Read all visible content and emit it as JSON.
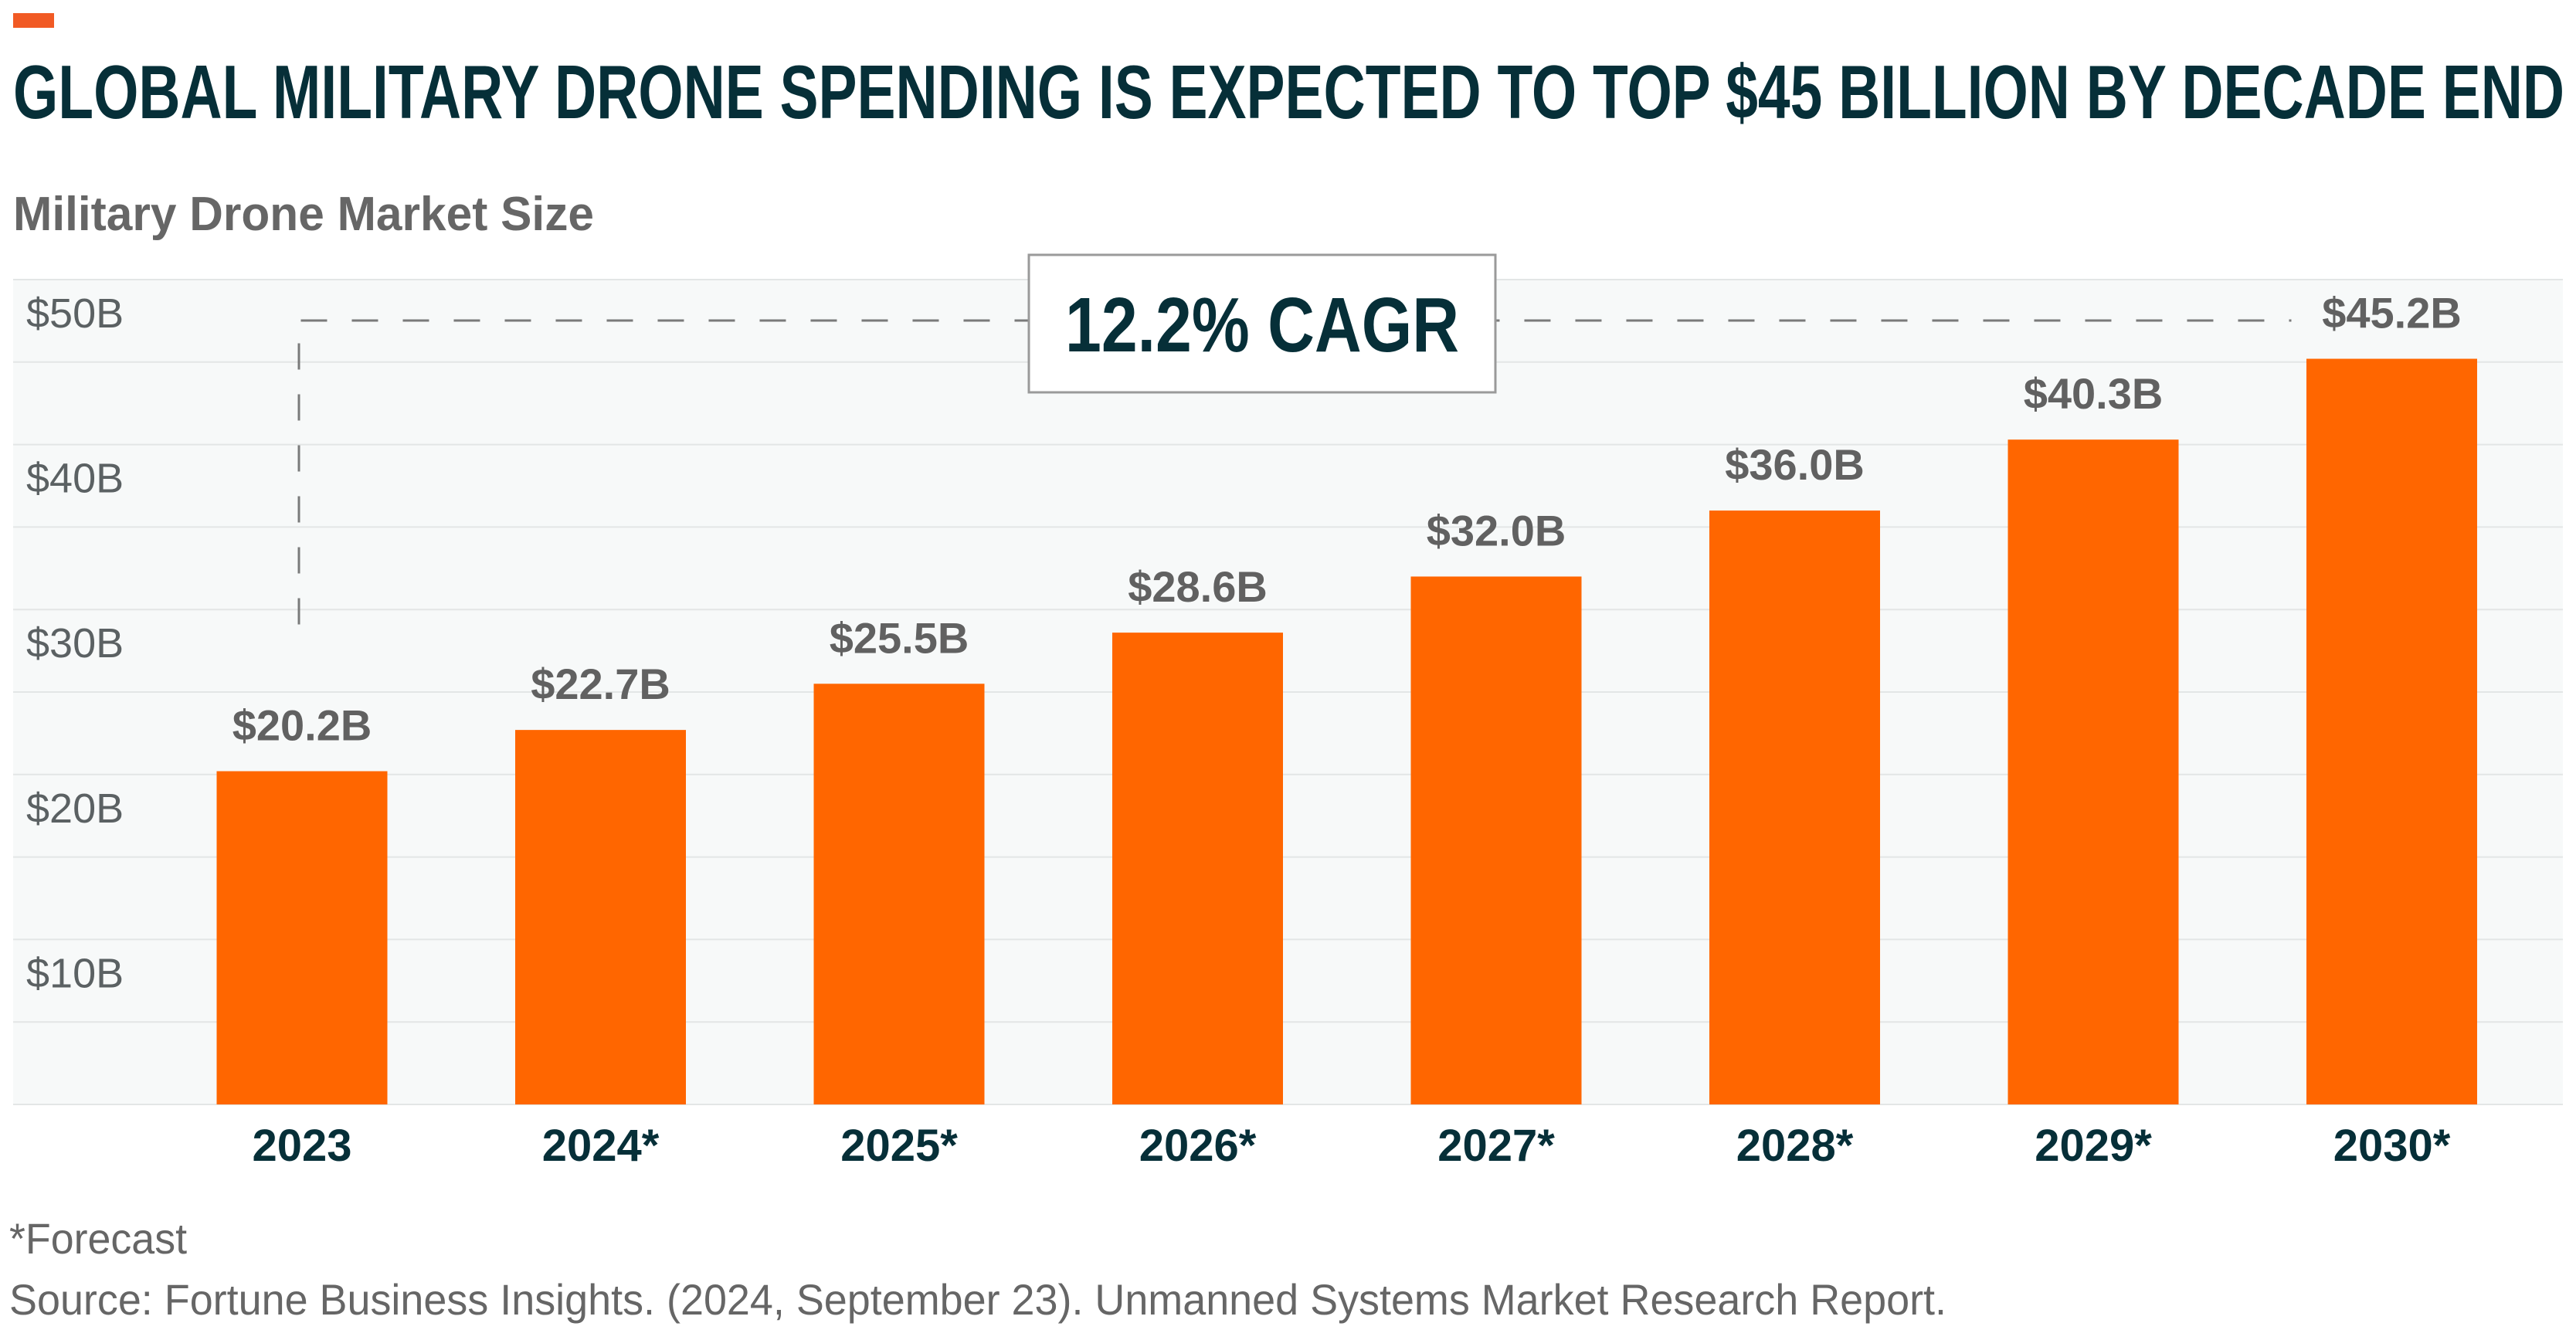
{
  "accent_color": "#f15a24",
  "bar_color": "#ff6600",
  "title": "GLOBAL MILITARY DRONE SPENDING IS EXPECTED TO TOP $45 BILLION BY DECADE END",
  "subtitle": "Military Drone Market Size",
  "annotation": {
    "text": "12.2% CAGR"
  },
  "footnotes": {
    "forecast": "*Forecast",
    "source": "Source: Fortune Business Insights. (2024, September 23). Unmanned Systems Market Research Report."
  },
  "chart_data": {
    "type": "bar",
    "title": "GLOBAL MILITARY DRONE SPENDING IS EXPECTED TO TOP $45 BILLION BY DECADE END",
    "subtitle": "Military Drone Market Size",
    "xlabel": "",
    "ylabel": "",
    "categories": [
      "2023",
      "2024*",
      "2025*",
      "2026*",
      "2027*",
      "2028*",
      "2029*",
      "2030*"
    ],
    "values": [
      20.2,
      22.7,
      25.5,
      28.6,
      32.0,
      36.0,
      40.3,
      45.2
    ],
    "value_labels": [
      "$20.2B",
      "$22.7B",
      "$25.5B",
      "$28.6B",
      "$32.0B",
      "$36.0B",
      "$40.3B",
      "$45.2B"
    ],
    "units": "USD billions",
    "ylim": [
      0,
      50
    ],
    "yticks": [
      10,
      20,
      30,
      40,
      50
    ],
    "ytick_labels": [
      "$10B",
      "$20B",
      "$30B",
      "$40B",
      "$50B"
    ],
    "grid": true,
    "grid_step": 5,
    "annotations": [
      "12.2% CAGR"
    ],
    "legend": "none"
  }
}
